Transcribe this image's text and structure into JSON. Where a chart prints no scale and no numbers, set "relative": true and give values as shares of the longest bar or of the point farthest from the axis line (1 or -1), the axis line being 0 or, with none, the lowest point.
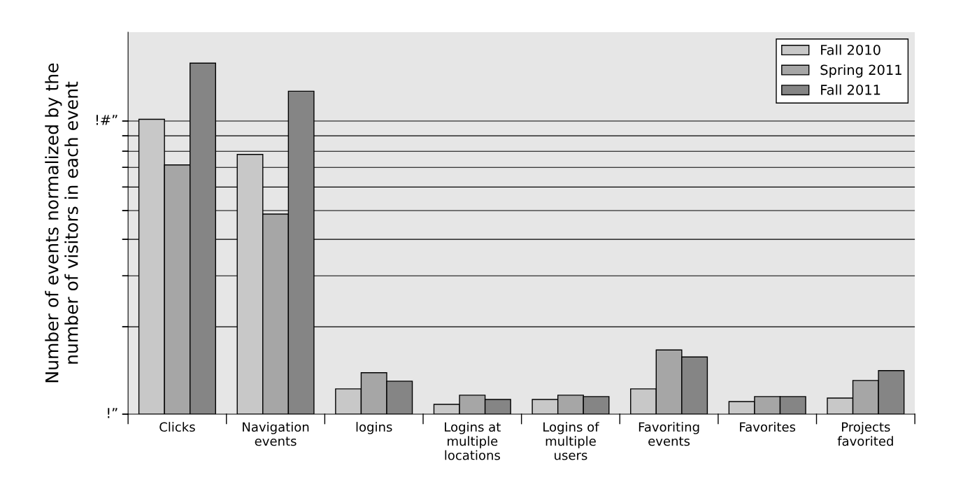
{
  "chart_data": {
    "type": "bar",
    "ylabel": "Number of events normalized by the\nnumber of visitors in each event",
    "categories": [
      "Clicks",
      "Navigation\nevents",
      "logins",
      "Logins at\nmultiple\nlocations",
      "Logins of\nmultiple\nusers",
      "Favoriting\nevents",
      "Favorites",
      "Projects\nfavorited"
    ],
    "series": [
      {
        "name": "Fall 2010",
        "color": "#c8c8c8",
        "values": [
          0.84,
          0.74,
          0.072,
          0.028,
          0.042,
          0.072,
          0.036,
          0.046
        ]
      },
      {
        "name": "Spring 2011",
        "color": "#a6a6a6",
        "values": [
          0.71,
          0.57,
          0.118,
          0.054,
          0.054,
          0.183,
          0.05,
          0.096
        ]
      },
      {
        "name": "Fall 2011",
        "color": "#858585",
        "values": [
          1,
          0.92,
          0.094,
          0.042,
          0.05,
          0.163,
          0.05,
          0.124
        ]
      }
    ],
    "relative": true,
    "ref_lines": [
      {
        "axis": "y",
        "value": 0,
        "label": "!”"
      },
      {
        "axis": "y",
        "value": 0.249,
        "color": "#000000"
      },
      {
        "axis": "y",
        "value": 0.394,
        "color": "#000000"
      },
      {
        "axis": "y",
        "value": 0.498,
        "color": "#000000"
      },
      {
        "axis": "y",
        "value": 0.58,
        "color": "#000000"
      },
      {
        "axis": "y",
        "value": 0.647,
        "color": "#000000"
      },
      {
        "axis": "y",
        "value": 0.703,
        "color": "#000000"
      },
      {
        "axis": "y",
        "value": 0.749,
        "color": "#000000"
      },
      {
        "axis": "y",
        "value": 0.793,
        "color": "#000000"
      },
      {
        "axis": "y",
        "value": 0.835,
        "label": "!#”",
        "color": "#000000"
      }
    ],
    "legend": "top right"
  }
}
